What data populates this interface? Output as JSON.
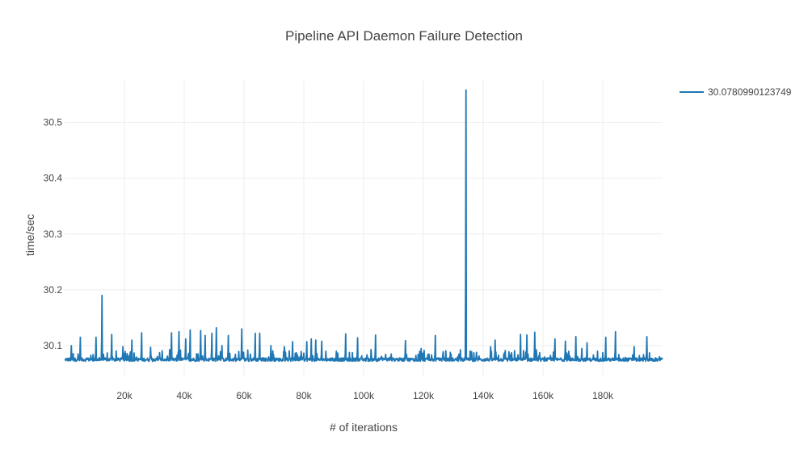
{
  "chart_data": {
    "type": "line",
    "title": "Pipeline API Daemon Failure Detection",
    "xlabel": "# of iterations",
    "ylabel": "time/sec",
    "xlim": [
      0,
      200000
    ],
    "ylim": [
      30.0465,
      30.5745
    ],
    "x_ticks": [
      20000,
      40000,
      60000,
      80000,
      100000,
      120000,
      140000,
      160000,
      180000
    ],
    "x_tick_labels": [
      "20k",
      "40k",
      "60k",
      "80k",
      "100k",
      "120k",
      "140k",
      "160k",
      "180k"
    ],
    "y_ticks": [
      30.1,
      30.2,
      30.3,
      30.4,
      30.5
    ],
    "y_tick_labels": [
      "30.1",
      "30.2",
      "30.3",
      "30.4",
      "30.5"
    ],
    "grid": true,
    "legend_position": "top-right",
    "series": [
      {
        "name": "30.0780990123749",
        "color": "#1f77b4",
        "baseline": 30.075,
        "peaks": [
          [
            2300,
            30.1
          ],
          [
            5300,
            30.115
          ],
          [
            10500,
            30.115
          ],
          [
            12500,
            30.19
          ],
          [
            15800,
            30.12
          ],
          [
            19500,
            30.098
          ],
          [
            22500,
            30.11
          ],
          [
            25800,
            30.123
          ],
          [
            28800,
            30.097
          ],
          [
            35700,
            30.123
          ],
          [
            38200,
            30.125
          ],
          [
            40500,
            30.112
          ],
          [
            42000,
            30.128
          ],
          [
            45500,
            30.127
          ],
          [
            47000,
            30.118
          ],
          [
            49200,
            30.122
          ],
          [
            50700,
            30.132
          ],
          [
            52600,
            30.1
          ],
          [
            54700,
            30.118
          ],
          [
            59200,
            30.13
          ],
          [
            63800,
            30.122
          ],
          [
            65300,
            30.122
          ],
          [
            69000,
            30.1
          ],
          [
            73500,
            30.098
          ],
          [
            76300,
            30.107
          ],
          [
            81000,
            30.107
          ],
          [
            82500,
            30.112
          ],
          [
            84000,
            30.11
          ],
          [
            86000,
            30.108
          ],
          [
            94000,
            30.121
          ],
          [
            98000,
            30.114
          ],
          [
            104000,
            30.119
          ],
          [
            114000,
            30.109
          ],
          [
            119200,
            30.095
          ],
          [
            124000,
            30.118
          ],
          [
            134200,
            30.558
          ],
          [
            137800,
            30.088
          ],
          [
            142500,
            30.098
          ],
          [
            144000,
            30.11
          ],
          [
            152500,
            30.12
          ],
          [
            154600,
            30.119
          ],
          [
            157300,
            30.124
          ],
          [
            164000,
            30.112
          ],
          [
            167500,
            30.108
          ],
          [
            171000,
            30.116
          ],
          [
            173000,
            30.095
          ],
          [
            174700,
            30.105
          ],
          [
            181000,
            30.115
          ],
          [
            184300,
            30.125
          ],
          [
            190500,
            30.098
          ],
          [
            194800,
            30.116
          ],
          [
            199000,
            30.08
          ]
        ]
      }
    ]
  }
}
